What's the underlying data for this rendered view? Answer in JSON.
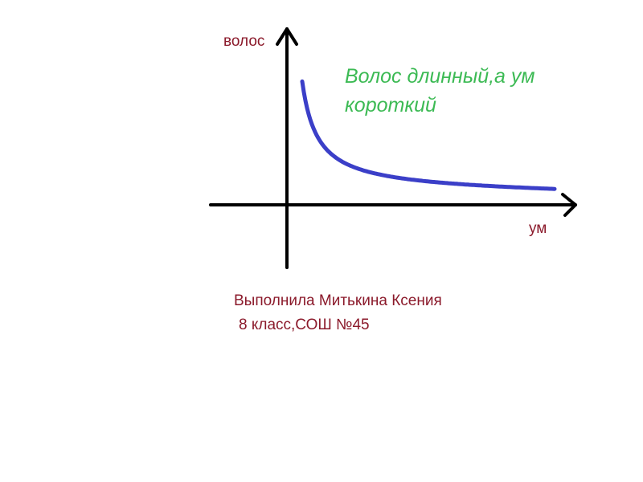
{
  "chart_data": {
    "type": "line",
    "title": "",
    "xlabel": "ум",
    "ylabel": "волос",
    "annotation": "Волос длинный,а ум короткий",
    "annotation_lines": [
      "Волос длинный,а ум",
      "короткий"
    ],
    "ticks": "none",
    "grid": false,
    "series": [
      {
        "shape": "decreasing hyperbola (inverse relationship)",
        "color": "#3b3fc8"
      }
    ],
    "colors": {
      "axes": "#000000",
      "curve": "#3b3fc8",
      "annotation": "#3cba54",
      "labels": "#8b1a2b"
    }
  },
  "caption": {
    "line1": "Выполнила Митькина Ксения",
    "line2": "8 класс,СОШ №45"
  }
}
